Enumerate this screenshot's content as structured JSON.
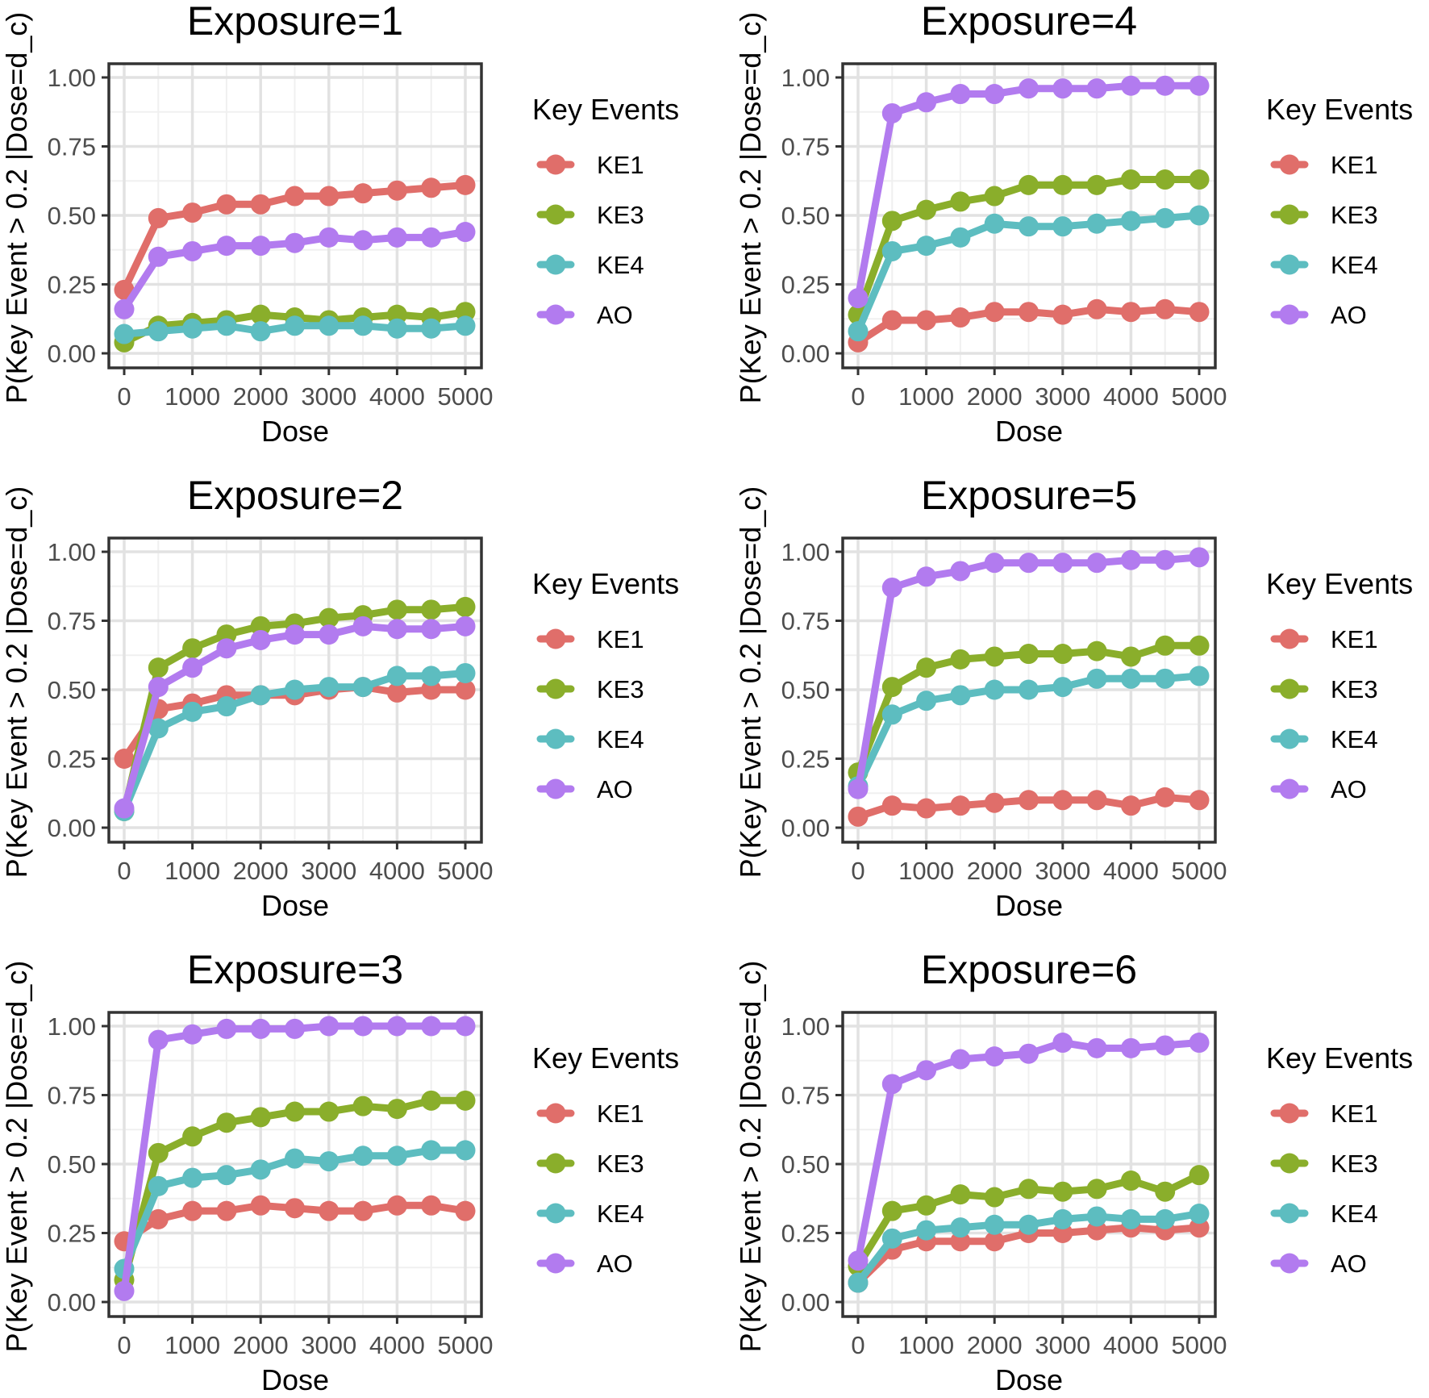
{
  "legend_title": "Key Events",
  "series_names": [
    "KE1",
    "KE3",
    "KE4",
    "AO"
  ],
  "colors": {
    "KE1": "#E06E6A",
    "KE3": "#8AAE2B",
    "KE4": "#5DBDC0",
    "AO": "#B27BEF"
  },
  "xlabel": "Dose",
  "ylabel": "P(Key Event > 0.2 |Dose=d_c)",
  "x_ticks": [
    "0",
    "1000",
    "2000",
    "3000",
    "4000",
    "5000"
  ],
  "y_ticks": [
    "0.00",
    "0.25",
    "0.50",
    "0.75",
    "1.00"
  ],
  "chart_data": [
    {
      "type": "line",
      "title": "Exposure=1",
      "xlabel": "Dose",
      "ylabel": "P(Key Event > 0.2 |Dose=d_c)",
      "xlim": [
        0,
        5000
      ],
      "ylim": [
        0,
        1
      ],
      "x": [
        0,
        500,
        1000,
        1500,
        2000,
        2500,
        3000,
        3500,
        4000,
        4500,
        5000
      ],
      "series": [
        {
          "name": "KE1",
          "values": [
            0.23,
            0.49,
            0.51,
            0.54,
            0.54,
            0.57,
            0.57,
            0.58,
            0.59,
            0.6,
            0.61
          ]
        },
        {
          "name": "KE3",
          "values": [
            0.04,
            0.1,
            0.11,
            0.12,
            0.14,
            0.13,
            0.12,
            0.13,
            0.14,
            0.13,
            0.15
          ]
        },
        {
          "name": "KE4",
          "values": [
            0.07,
            0.08,
            0.09,
            0.1,
            0.08,
            0.1,
            0.1,
            0.1,
            0.09,
            0.09,
            0.1
          ]
        },
        {
          "name": "AO",
          "values": [
            0.16,
            0.35,
            0.37,
            0.39,
            0.39,
            0.4,
            0.42,
            0.41,
            0.42,
            0.42,
            0.44
          ]
        }
      ]
    },
    {
      "type": "line",
      "title": "Exposure=4",
      "xlabel": "Dose",
      "ylabel": "P(Key Event > 0.2 |Dose=d_c)",
      "xlim": [
        0,
        5000
      ],
      "ylim": [
        0,
        1
      ],
      "x": [
        0,
        500,
        1000,
        1500,
        2000,
        2500,
        3000,
        3500,
        4000,
        4500,
        5000
      ],
      "series": [
        {
          "name": "KE1",
          "values": [
            0.04,
            0.12,
            0.12,
            0.13,
            0.15,
            0.15,
            0.14,
            0.16,
            0.15,
            0.16,
            0.15
          ]
        },
        {
          "name": "KE3",
          "values": [
            0.14,
            0.48,
            0.52,
            0.55,
            0.57,
            0.61,
            0.61,
            0.61,
            0.63,
            0.63,
            0.63
          ]
        },
        {
          "name": "KE4",
          "values": [
            0.08,
            0.37,
            0.39,
            0.42,
            0.47,
            0.46,
            0.46,
            0.47,
            0.48,
            0.49,
            0.5
          ]
        },
        {
          "name": "AO",
          "values": [
            0.2,
            0.87,
            0.91,
            0.94,
            0.94,
            0.96,
            0.96,
            0.96,
            0.97,
            0.97,
            0.97
          ]
        }
      ]
    },
    {
      "type": "line",
      "title": "Exposure=2",
      "xlabel": "Dose",
      "ylabel": "P(Key Event > 0.2 |Dose=d_c)",
      "xlim": [
        0,
        5000
      ],
      "ylim": [
        0,
        1
      ],
      "x": [
        0,
        500,
        1000,
        1500,
        2000,
        2500,
        3000,
        3500,
        4000,
        4500,
        5000
      ],
      "series": [
        {
          "name": "KE1",
          "values": [
            0.25,
            0.43,
            0.45,
            0.48,
            0.48,
            0.48,
            0.5,
            0.51,
            0.49,
            0.5,
            0.5
          ]
        },
        {
          "name": "KE3",
          "values": [
            0.06,
            0.58,
            0.65,
            0.7,
            0.73,
            0.74,
            0.76,
            0.77,
            0.79,
            0.79,
            0.8
          ]
        },
        {
          "name": "KE4",
          "values": [
            0.06,
            0.36,
            0.42,
            0.44,
            0.48,
            0.5,
            0.51,
            0.51,
            0.55,
            0.55,
            0.56
          ]
        },
        {
          "name": "AO",
          "values": [
            0.07,
            0.51,
            0.58,
            0.65,
            0.68,
            0.7,
            0.7,
            0.73,
            0.72,
            0.72,
            0.73
          ]
        }
      ]
    },
    {
      "type": "line",
      "title": "Exposure=5",
      "xlabel": "Dose",
      "ylabel": "P(Key Event > 0.2 |Dose=d_c)",
      "xlim": [
        0,
        5000
      ],
      "ylim": [
        0,
        1
      ],
      "x": [
        0,
        500,
        1000,
        1500,
        2000,
        2500,
        3000,
        3500,
        4000,
        4500,
        5000
      ],
      "series": [
        {
          "name": "KE1",
          "values": [
            0.04,
            0.08,
            0.07,
            0.08,
            0.09,
            0.1,
            0.1,
            0.1,
            0.08,
            0.11,
            0.1
          ]
        },
        {
          "name": "KE3",
          "values": [
            0.2,
            0.51,
            0.58,
            0.61,
            0.62,
            0.63,
            0.63,
            0.64,
            0.62,
            0.66,
            0.66
          ]
        },
        {
          "name": "KE4",
          "values": [
            0.15,
            0.41,
            0.46,
            0.48,
            0.5,
            0.5,
            0.51,
            0.54,
            0.54,
            0.54,
            0.55
          ]
        },
        {
          "name": "AO",
          "values": [
            0.14,
            0.87,
            0.91,
            0.93,
            0.96,
            0.96,
            0.96,
            0.96,
            0.97,
            0.97,
            0.98
          ]
        }
      ]
    },
    {
      "type": "line",
      "title": "Exposure=3",
      "xlabel": "Dose",
      "ylabel": "P(Key Event > 0.2 |Dose=d_c)",
      "xlim": [
        0,
        5000
      ],
      "ylim": [
        0,
        1
      ],
      "x": [
        0,
        500,
        1000,
        1500,
        2000,
        2500,
        3000,
        3500,
        4000,
        4500,
        5000
      ],
      "series": [
        {
          "name": "KE1",
          "values": [
            0.22,
            0.3,
            0.33,
            0.33,
            0.35,
            0.34,
            0.33,
            0.33,
            0.35,
            0.35,
            0.33
          ]
        },
        {
          "name": "KE3",
          "values": [
            0.08,
            0.54,
            0.6,
            0.65,
            0.67,
            0.69,
            0.69,
            0.71,
            0.7,
            0.73,
            0.73
          ]
        },
        {
          "name": "KE4",
          "values": [
            0.12,
            0.42,
            0.45,
            0.46,
            0.48,
            0.52,
            0.51,
            0.53,
            0.53,
            0.55,
            0.55
          ]
        },
        {
          "name": "AO",
          "values": [
            0.04,
            0.95,
            0.97,
            0.99,
            0.99,
            0.99,
            1.0,
            1.0,
            1.0,
            1.0,
            1.0
          ]
        }
      ]
    },
    {
      "type": "line",
      "title": "Exposure=6",
      "xlabel": "Dose",
      "ylabel": "P(Key Event > 0.2 |Dose=d_c)",
      "xlim": [
        0,
        5000
      ],
      "ylim": [
        0,
        1
      ],
      "x": [
        0,
        500,
        1000,
        1500,
        2000,
        2500,
        3000,
        3500,
        4000,
        4500,
        5000
      ],
      "series": [
        {
          "name": "KE1",
          "values": [
            0.07,
            0.19,
            0.22,
            0.22,
            0.22,
            0.25,
            0.25,
            0.26,
            0.27,
            0.26,
            0.27
          ]
        },
        {
          "name": "KE3",
          "values": [
            0.13,
            0.33,
            0.35,
            0.39,
            0.38,
            0.41,
            0.4,
            0.41,
            0.44,
            0.4,
            0.46
          ]
        },
        {
          "name": "KE4",
          "values": [
            0.07,
            0.23,
            0.26,
            0.27,
            0.28,
            0.28,
            0.3,
            0.31,
            0.3,
            0.3,
            0.32
          ]
        },
        {
          "name": "AO",
          "values": [
            0.15,
            0.79,
            0.84,
            0.88,
            0.89,
            0.9,
            0.94,
            0.92,
            0.92,
            0.93,
            0.94
          ]
        }
      ]
    }
  ]
}
